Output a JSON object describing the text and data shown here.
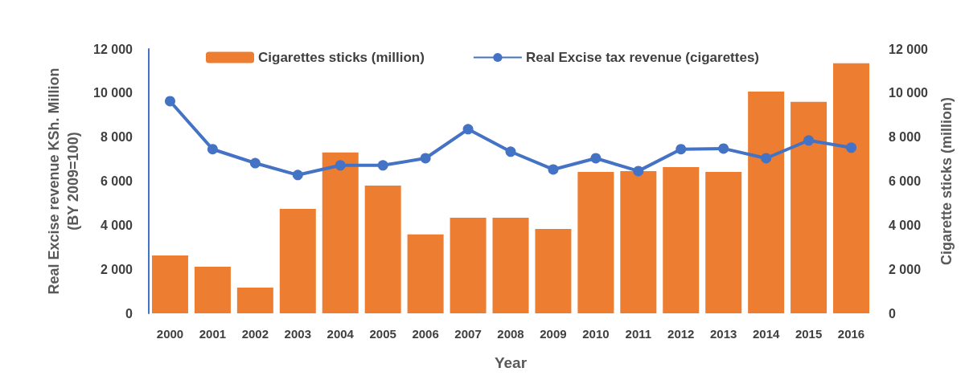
{
  "chart_data": {
    "type": "bar",
    "xlabel": "Year",
    "ylabel": "Real Excise revenue KSh. Million\n(BY 2009=100)",
    "y2label": "Cigarette sticks (million)",
    "categories": [
      "2000",
      "2001",
      "2002",
      "2003",
      "2004",
      "2005",
      "2006",
      "2007",
      "2008",
      "2009",
      "2010",
      "2011",
      "2012",
      "2013",
      "2014",
      "2015",
      "2016"
    ],
    "series": [
      {
        "name": "Cigarettes sticks (million)",
        "axis": "y2",
        "color": "#ed7d31",
        "values": [
          2630,
          2120,
          1170,
          4740,
          7300,
          5800,
          3580,
          4340,
          4340,
          3830,
          6420,
          6460,
          6640,
          6420,
          10070,
          9600,
          11350
        ]
      },
      {
        "name": "Real Excise tax revenue (cigarettes)",
        "type": "line",
        "axis": "y",
        "color": "#4472c4",
        "values": [
          9630,
          7450,
          6820,
          6280,
          6720,
          6720,
          7040,
          8360,
          7340,
          6530,
          7040,
          6460,
          7450,
          7480,
          7040,
          7850,
          7520
        ]
      }
    ],
    "ylim": [
      0,
      12000
    ],
    "yticks": [
      {
        "value": 0,
        "label": "0"
      },
      {
        "value": 2000,
        "label": "2 000"
      },
      {
        "value": 4000,
        "label": "4 000"
      },
      {
        "value": 6000,
        "label": "6 000"
      },
      {
        "value": 8000,
        "label": "8 000"
      },
      {
        "value": 10000,
        "label": "10 000"
      },
      {
        "value": 12000,
        "label": "12 000"
      }
    ],
    "y2lim": [
      0,
      12000
    ],
    "y2ticks": [
      {
        "value": 0,
        "label": "0"
      },
      {
        "value": 2000,
        "label": "2 000"
      },
      {
        "value": 4000,
        "label": "4 000"
      },
      {
        "value": 6000,
        "label": "6 000"
      },
      {
        "value": 8000,
        "label": "8 000"
      },
      {
        "value": 10000,
        "label": "10 000"
      },
      {
        "value": 12000,
        "label": "12 000"
      }
    ],
    "grid": false,
    "legend": "top",
    "marker": "circle",
    "line_style": "solid"
  }
}
